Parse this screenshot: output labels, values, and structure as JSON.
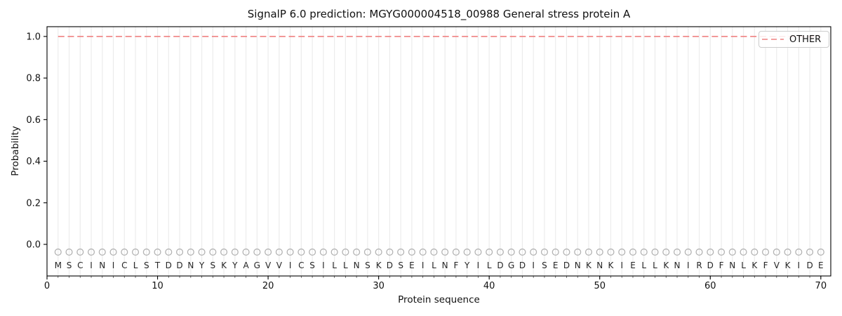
{
  "chart_data": {
    "type": "line",
    "title": "SignalP 6.0 prediction: MGYG000004518_00988 General stress protein A",
    "xlabel": "Protein sequence",
    "ylabel": "Probability",
    "xlim": [
      0,
      70.9
    ],
    "ylim": [
      -0.152,
      1.047
    ],
    "x_ticks": [
      0,
      10,
      20,
      30,
      40,
      50,
      60,
      70
    ],
    "x_minor_tick_step": 1,
    "y_ticks": [
      0.0,
      0.2,
      0.4,
      0.6,
      0.8,
      1.0
    ],
    "y_tick_labels": [
      "0.0",
      "0.2",
      "0.4",
      "0.6",
      "0.8",
      "1.0"
    ],
    "grid": "vertical gridline at every residue position",
    "legend_position": "upper right",
    "sequence": "MSCINICLSTDDNYSKYAGVVICSILLNSKDSEILNFYILDGDISEDNKNKIELLKNIRDFNLKFVKIDE",
    "sequence_length": 70,
    "series": [
      {
        "name": "OTHER",
        "style": "dashed",
        "color": "#ef8080",
        "x_start": 1,
        "x_end": 70,
        "y_constant": 1.0
      }
    ],
    "residue_markers": {
      "shape": "open-circle",
      "color": "#b3b3b3",
      "y_value": -0.037
    },
    "residue_letter_y_value": -0.101
  },
  "legend": {
    "items": [
      {
        "label": "OTHER",
        "color": "#ef8080",
        "dashed": true
      }
    ]
  },
  "colors": {
    "background": "#ffffff",
    "spine": "#000000",
    "gridline": "#ececec",
    "tick_label": "#111111",
    "sequence_letter": "#262626",
    "marker_stroke": "#b3b3b3",
    "other_line": "#ef8080"
  }
}
